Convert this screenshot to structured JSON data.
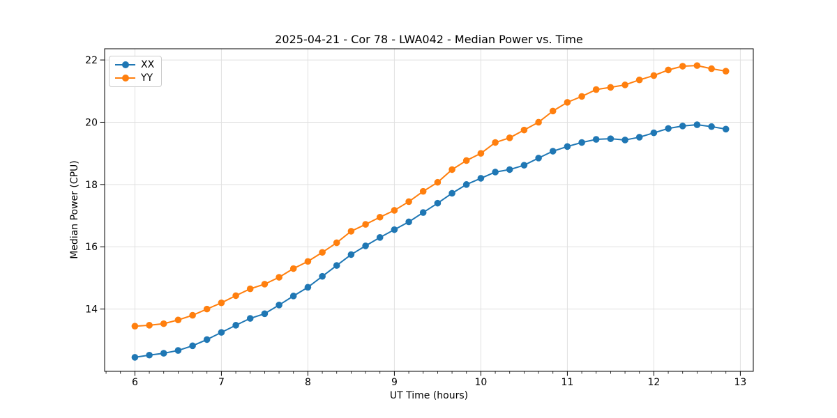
{
  "figure": {
    "background": "#ffffff",
    "grid_color": "#e0e0e0",
    "spine_color": "#000000",
    "text_color": "#000000"
  },
  "chart_data": {
    "type": "line",
    "title": "2025-04-21 - Cor 78 - LWA042 - Median Power vs. Time",
    "xlabel": "UT Time (hours)",
    "ylabel": "Median Power (CPU)",
    "grid": true,
    "legend_position": "upper-left",
    "xlim": [
      5.65,
      13.15
    ],
    "ylim": [
      12.0,
      22.36
    ],
    "x_major_ticks": [
      6,
      7,
      8,
      9,
      10,
      11,
      12,
      13
    ],
    "x_minor_tick_interval_hours": 0.1667,
    "y_major_ticks": [
      14,
      16,
      18,
      20,
      22
    ],
    "x": [
      6.0,
      6.167,
      6.333,
      6.5,
      6.667,
      6.833,
      7.0,
      7.167,
      7.333,
      7.5,
      7.667,
      7.833,
      8.0,
      8.167,
      8.333,
      8.5,
      8.667,
      8.833,
      9.0,
      9.167,
      9.333,
      9.5,
      9.667,
      9.833,
      10.0,
      10.167,
      10.333,
      10.5,
      10.667,
      10.833,
      11.0,
      11.167,
      11.333,
      11.5,
      11.667,
      11.833,
      12.0,
      12.167,
      12.333,
      12.5,
      12.667,
      12.833
    ],
    "series": [
      {
        "name": "XX",
        "color": "#1f77b4",
        "values": [
          12.45,
          12.52,
          12.58,
          12.67,
          12.82,
          13.02,
          13.25,
          13.48,
          13.7,
          13.85,
          14.13,
          14.42,
          14.7,
          15.05,
          15.4,
          15.75,
          16.03,
          16.3,
          16.55,
          16.8,
          17.1,
          17.4,
          17.72,
          18.0,
          18.2,
          18.4,
          18.48,
          18.62,
          18.85,
          19.07,
          19.22,
          19.35,
          19.45,
          19.47,
          19.43,
          19.52,
          19.66,
          19.8,
          19.88,
          19.92,
          19.86,
          19.78
        ]
      },
      {
        "name": "YY",
        "color": "#ff7f0e",
        "values": [
          13.45,
          13.48,
          13.53,
          13.65,
          13.8,
          14.0,
          14.2,
          14.43,
          14.65,
          14.8,
          15.02,
          15.3,
          15.53,
          15.82,
          16.13,
          16.5,
          16.72,
          16.95,
          17.17,
          17.45,
          17.78,
          18.07,
          18.48,
          18.77,
          19.0,
          19.35,
          19.5,
          19.75,
          20.0,
          20.36,
          20.64,
          20.83,
          21.05,
          21.12,
          21.2,
          21.36,
          21.5,
          21.68,
          21.8,
          21.82,
          21.72,
          21.64
        ]
      }
    ]
  }
}
